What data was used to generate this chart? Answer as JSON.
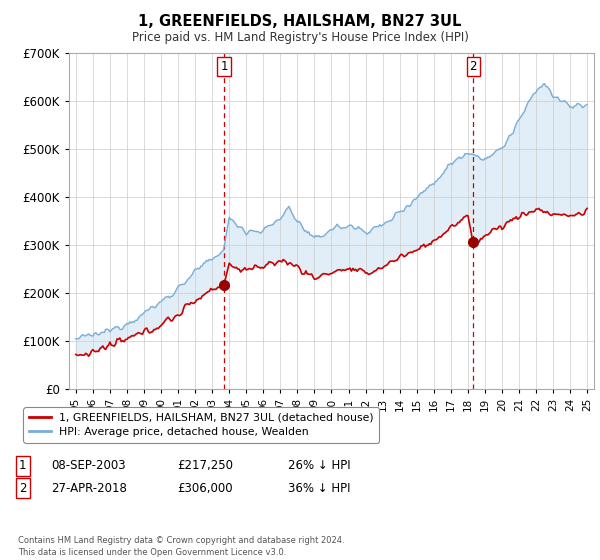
{
  "title": "1, GREENFIELDS, HAILSHAM, BN27 3UL",
  "subtitle": "Price paid vs. HM Land Registry's House Price Index (HPI)",
  "legend_line1": "1, GREENFIELDS, HAILSHAM, BN27 3UL (detached house)",
  "legend_line2": "HPI: Average price, detached house, Wealden",
  "sale1_label": "1",
  "sale1_date": "08-SEP-2003",
  "sale1_price": "£217,250",
  "sale1_hpi": "26% ↓ HPI",
  "sale1_x": 2003.69,
  "sale1_y": 217250,
  "sale2_label": "2",
  "sale2_date": "27-APR-2018",
  "sale2_price": "£306,000",
  "sale2_hpi": "36% ↓ HPI",
  "sale2_x": 2018.32,
  "sale2_y": 306000,
  "price_color": "#cc0000",
  "hpi_color": "#7aaed6",
  "fill_color": "#d6e8f5",
  "marker_color": "#990000",
  "vline_color": "#cc0000",
  "ylim": [
    0,
    700000
  ],
  "xlim_start": 1994.6,
  "xlim_end": 2025.4,
  "background_color": "#ffffff",
  "grid_color": "#cccccc",
  "footer": "Contains HM Land Registry data © Crown copyright and database right 2024.\nThis data is licensed under the Open Government Licence v3.0."
}
